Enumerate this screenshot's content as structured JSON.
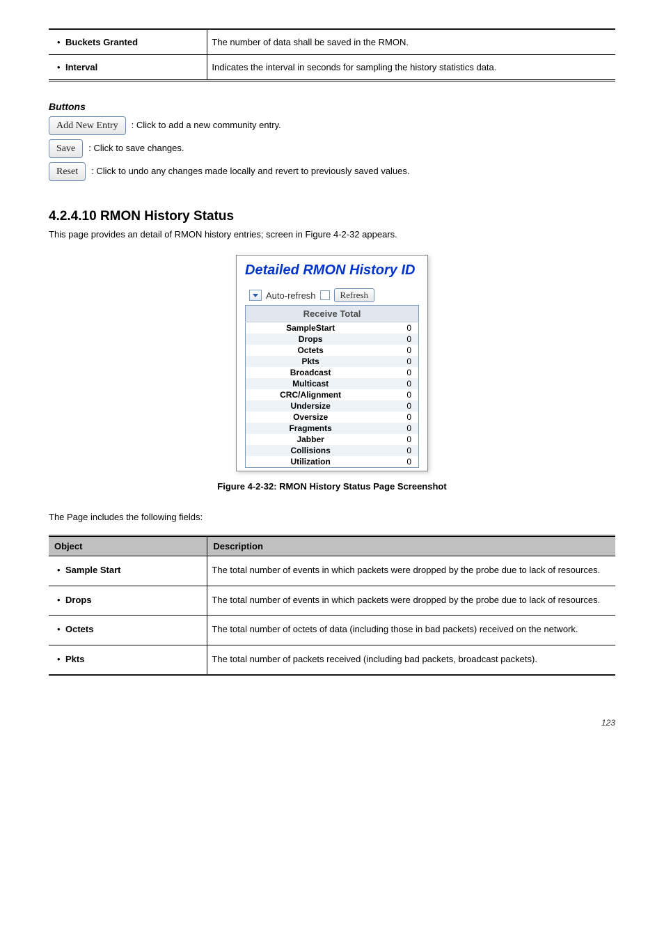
{
  "top_rows": [
    {
      "label": "Buckets Granted",
      "desc": "The number of data shall be saved in the RMON."
    },
    {
      "label": "Interval",
      "desc": "Indicates the interval in seconds for sampling the history statistics data."
    }
  ],
  "buttons_heading": "Buttons",
  "buttons": [
    {
      "label": "Add New Entry",
      "desc": ": Click to add a new community entry."
    },
    {
      "label": "Save",
      "desc": ": Click to save changes."
    },
    {
      "label": "Reset",
      "desc": ": Click to undo any changes made locally and revert to previously saved values."
    }
  ],
  "section_title": "4.2.4.10 RMON History Status",
  "section_intro_1": "This page provides an detail of RMON history entries; screen in ",
  "section_intro_link": "Figure 4-2-32",
  "section_intro_2": " appears.",
  "fig": {
    "title": "Detailed RMON History  ID",
    "autorefresh_label": "Auto-refresh",
    "refresh_label": "Refresh",
    "header": "Receive Total",
    "rows": [
      {
        "name": "SampleStart",
        "val": "0"
      },
      {
        "name": "Drops",
        "val": "0"
      },
      {
        "name": "Octets",
        "val": "0"
      },
      {
        "name": "Pkts",
        "val": "0"
      },
      {
        "name": "Broadcast",
        "val": "0"
      },
      {
        "name": "Multicast",
        "val": "0"
      },
      {
        "name": "CRC/Alignment",
        "val": "0"
      },
      {
        "name": "Undersize",
        "val": "0"
      },
      {
        "name": "Oversize",
        "val": "0"
      },
      {
        "name": "Fragments",
        "val": "0"
      },
      {
        "name": "Jabber",
        "val": "0"
      },
      {
        "name": "Collisions",
        "val": "0"
      },
      {
        "name": "Utilization",
        "val": "0"
      }
    ]
  },
  "fig_caption": "Figure 4-2-32: RMON History Status Page Screenshot",
  "params_intro": "The Page includes the following fields:",
  "params_head_obj": "Object",
  "params_head_desc": "Description",
  "params_rows": [
    {
      "label": "Sample Start",
      "desc": "The total number of events in which packets were dropped by the probe due to lack of resources."
    },
    {
      "label": "Drops",
      "desc": "The total number of events in which packets were dropped by the probe due to lack of resources."
    },
    {
      "label": "Octets",
      "desc": "The total number of octets of data (including those in bad packets) received on the network."
    },
    {
      "label": "Pkts",
      "desc": "The total number of packets received (including bad packets, broadcast packets)."
    }
  ],
  "footer": "123"
}
